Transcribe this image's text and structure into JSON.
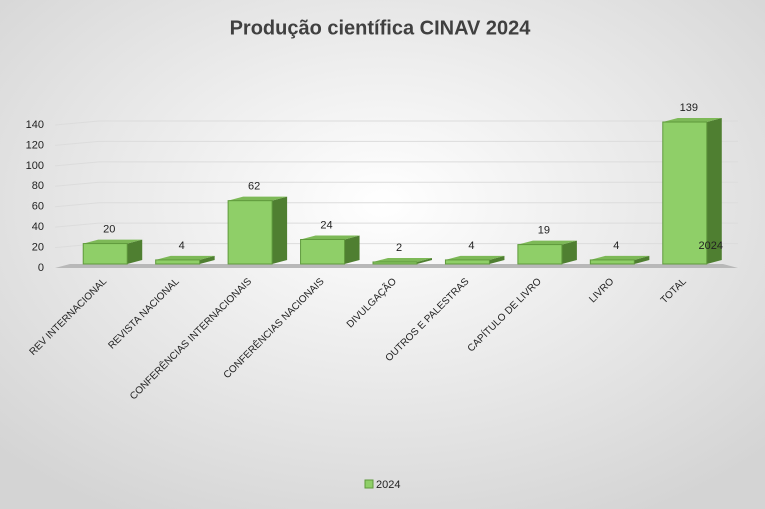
{
  "chart_data": {
    "type": "bar3d",
    "title": "Produção científica CINAV 2024",
    "categories": [
      "REV INTERNACIONAL",
      "REVISTA NACIONAL",
      "CONFERÊNCIAS INTERNACIONAIS",
      "CONFERÊNCIAS NACIONAIS",
      "DIVULGAÇÃO",
      "OUTROS E PALESTRAS",
      "CAPÍTULO DE LIVRO",
      "LIVRO",
      "TOTAL"
    ],
    "series": [
      {
        "name": "2024",
        "color": "#8fcf68",
        "values": [
          20,
          4,
          62,
          24,
          2,
          4,
          19,
          4,
          139
        ]
      }
    ],
    "ylim": [
      0,
      140
    ],
    "yticks": [
      0,
      20,
      40,
      60,
      80,
      100,
      120,
      140
    ],
    "grid": true,
    "legend": "bottom"
  }
}
